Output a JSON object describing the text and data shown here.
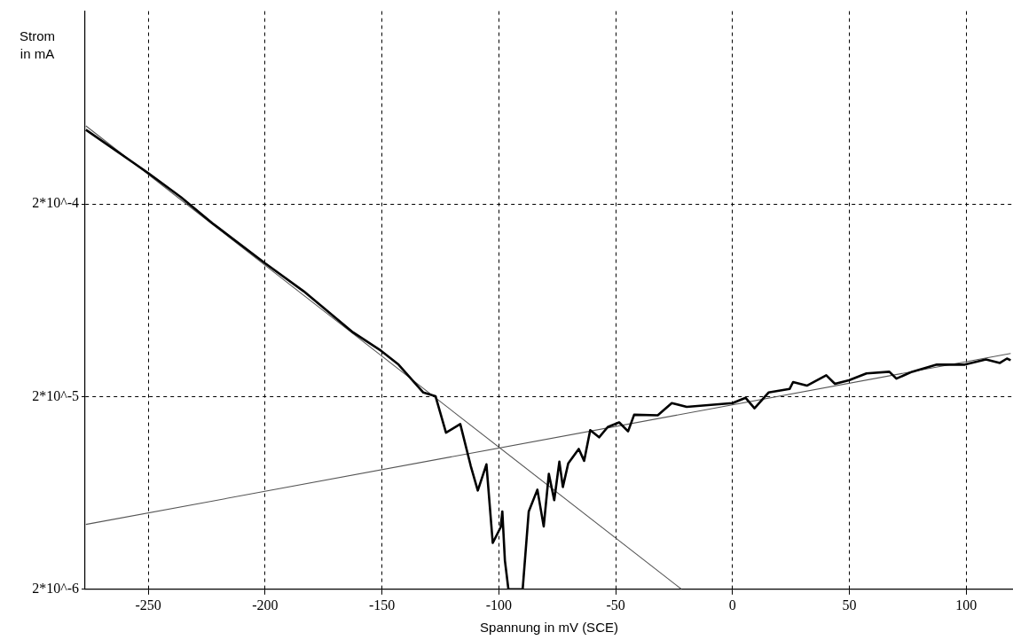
{
  "chart_data": {
    "type": "line",
    "xlabel": "Spannung in mV (SCE)",
    "ylabel": "Strom\nin mA",
    "log": "y",
    "grid": true,
    "xlim": [
      -277,
      120
    ],
    "xticks": [
      -250,
      -200,
      -150,
      -100,
      -50,
      0,
      50,
      100
    ],
    "ylim": [
      2e-06,
      0.002
    ],
    "yticks": [
      {
        "value": 2e-06,
        "label": "2*10^-6"
      },
      {
        "value": 2e-05,
        "label": "2*10^-5"
      },
      {
        "value": 0.0002,
        "label": "2*10^-4"
      }
    ],
    "series": [
      {
        "color": "#000000",
        "x": [
          -276.7,
          -250,
          -236.1,
          -222.6,
          -200,
          -183.5,
          -162.4,
          -150.4,
          -142.9,
          -132.3,
          -127.1,
          -122.6,
          -116.5,
          -112.0,
          -109.0,
          -105.3,
          -102.6,
          -99.2,
          -98.5,
          -97.4,
          -95.9,
          -89.8,
          -87.2,
          -83.5,
          -80.8,
          -78.6,
          -76.3,
          -74.1,
          -72.6,
          -70.3,
          -65.8,
          -63.5,
          -60.9,
          -57.1,
          -53.4,
          -48.5,
          -44.7,
          -42.1,
          -32.0,
          -26.0,
          -19.6,
          0,
          5.6,
          9.4,
          15.4,
          24.4,
          25.9,
          31.8,
          40.1,
          43.8,
          49.8,
          57.3,
          67.1,
          70.1,
          76.8,
          87.4,
          99.4,
          108.4,
          114.4,
          117.4,
          119
        ],
        "values": [
          0.000485,
          0.000289,
          0.000217,
          0.000159,
          9.83e-05,
          7.04e-05,
          4.31e-05,
          3.46e-05,
          2.93e-05,
          2.1e-05,
          2.01e-05,
          1.3e-05,
          1.44e-05,
          8.72e-06,
          6.51e-06,
          8.9e-06,
          3.48e-06,
          4.2e-06,
          5.07e-06,
          2.82e-06,
          2e-06,
          2e-06,
          5.07e-06,
          6.58e-06,
          4.24e-06,
          7.94e-06,
          5.8e-06,
          9.19e-06,
          6.79e-06,
          9e-06,
          1.07e-05,
          9.28e-06,
          1.34e-05,
          1.23e-05,
          1.39e-05,
          1.47e-05,
          1.32e-05,
          1.61e-05,
          1.6e-05,
          1.85e-05,
          1.77e-05,
          1.85e-05,
          1.97e-05,
          1.74e-05,
          2.1e-05,
          2.19e-05,
          2.38e-05,
          2.28e-05,
          2.58e-05,
          2.33e-05,
          2.43e-05,
          2.64e-05,
          2.69e-05,
          2.48e-05,
          2.69e-05,
          2.93e-05,
          2.93e-05,
          3.12e-05,
          2.99e-05,
          3.15e-05,
          3.09e-05
        ]
      },
      {
        "color": "#555555",
        "x": [
          -276.7,
          -21.8
        ],
        "values": [
          0.000508,
          2e-06
        ]
      },
      {
        "color": "#555555",
        "x": [
          -276.7,
          119
        ],
        "values": [
          4.34e-06,
          3.35e-05
        ]
      }
    ]
  }
}
